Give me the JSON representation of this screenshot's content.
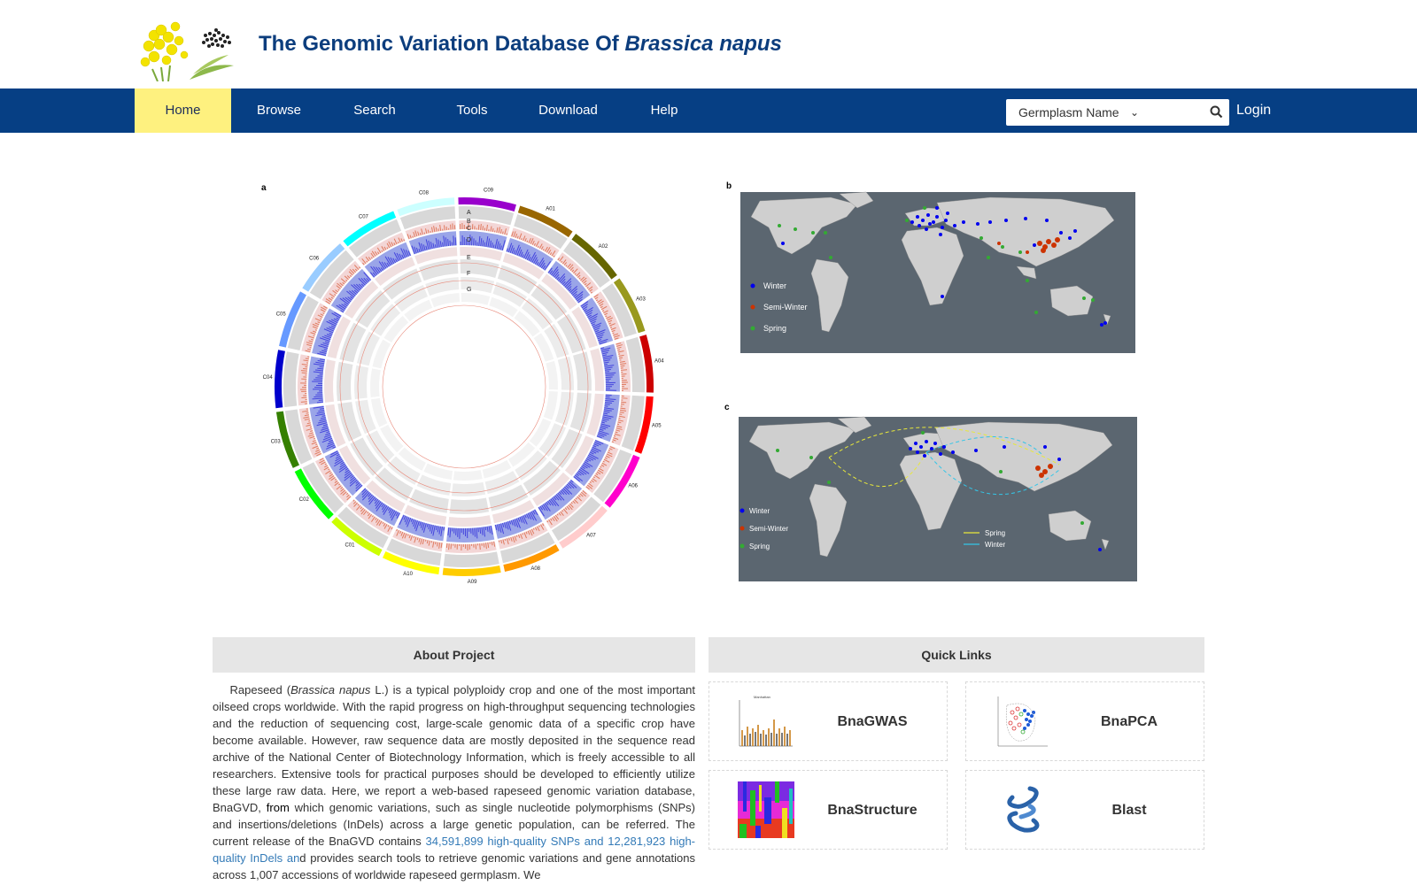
{
  "header": {
    "title_prefix": "The Genomic Variation Database Of ",
    "title_species": "Brassica napus"
  },
  "nav": {
    "items": [
      {
        "label": "Home",
        "active": true
      },
      {
        "label": "Browse"
      },
      {
        "label": "Search"
      },
      {
        "label": "Tools"
      },
      {
        "label": "Download"
      },
      {
        "label": "Help"
      }
    ],
    "search_select_value": "Germplasm Name",
    "search_placeholder": "",
    "login_label": "Login"
  },
  "figures": {
    "circos": {
      "panel_letter": "a",
      "track_labels": [
        "A",
        "B",
        "C",
        "D",
        "E",
        "F",
        "G"
      ],
      "chromosomes": [
        "A01",
        "A02",
        "A03",
        "A04",
        "A05",
        "A06",
        "A07",
        "A08",
        "A09",
        "A10",
        "C01",
        "C02",
        "C03",
        "C04",
        "C05",
        "C06",
        "C07",
        "C08",
        "C09"
      ],
      "chromosome_colors": [
        "#996600",
        "#666600",
        "#99991e",
        "#cc0000",
        "#ff0000",
        "#ff00cc",
        "#ffcccc",
        "#ff9900",
        "#ffcc00",
        "#ffff00",
        "#ccff00",
        "#00ff00",
        "#358000",
        "#0000cc",
        "#6699ff",
        "#99ccff",
        "#00ffff",
        "#ccffff",
        "#9900cc"
      ]
    },
    "map_b": {
      "panel_letter": "b",
      "legend": [
        {
          "label": "Winter",
          "color": "#0000ee"
        },
        {
          "label": "Semi-Winter",
          "color": "#cc3300"
        },
        {
          "label": "Spring",
          "color": "#33aa33"
        }
      ],
      "ocean_color": "#5b6670",
      "land_color": "#cfcfcf"
    },
    "map_c": {
      "panel_letter": "c",
      "legend": [
        {
          "label": "Winter",
          "color": "#0000ee"
        },
        {
          "label": "Semi-Winter",
          "color": "#cc3300"
        },
        {
          "label": "Spring",
          "color": "#33aa33"
        }
      ],
      "route_legend": [
        {
          "label": "Spring",
          "color": "#e8e83a"
        },
        {
          "label": "Winter",
          "color": "#33c6e8"
        }
      ]
    }
  },
  "about": {
    "heading": "About Project",
    "p1_a": "Rapeseed (",
    "p1_species": "Brassica napus",
    "p1_b": " L.) is a typical polyploidy crop and one of the most important oilseed crops worldwide. With the rapid progress on high-throughput sequencing technologies and the reduction of sequencing cost, large-scale genomic data of a specific crop have become available. However, raw sequence data are mostly deposited in the sequence read archive of the National Center of Biotechnology Information, which is freely accessible to all researchers. Extensive tools for practical purposes should be developed to efficiently utilize these large raw data. Here, we report a web-based rapeseed genomic variation database, BnaGVD, ",
    "p1_from": "from",
    "p1_c": " which genomic variations, such as single nucleotide polymorphisms (SNPs) and insertions/deletions (InDels) across a large genetic population, can be referred. The current release of the BnaGVD contains ",
    "p1_highlight": "34,591,899 high-quality SNPs and 12,281,923 high-quality InDels an",
    "p1_d": "d provides search tools to retrieve genomic variations and gene annotations across 1,007 accessions of worldwide rapeseed germplasm. We"
  },
  "quick_links": {
    "heading": "Quick Links",
    "items": [
      {
        "label": "BnaGWAS",
        "icon": "manhattan-plot-icon"
      },
      {
        "label": "BnaPCA",
        "icon": "pca-scatter-icon"
      },
      {
        "label": "BnaStructure",
        "icon": "structure-plot-icon"
      },
      {
        "label": "Blast",
        "icon": "blast-helix-icon"
      }
    ]
  }
}
